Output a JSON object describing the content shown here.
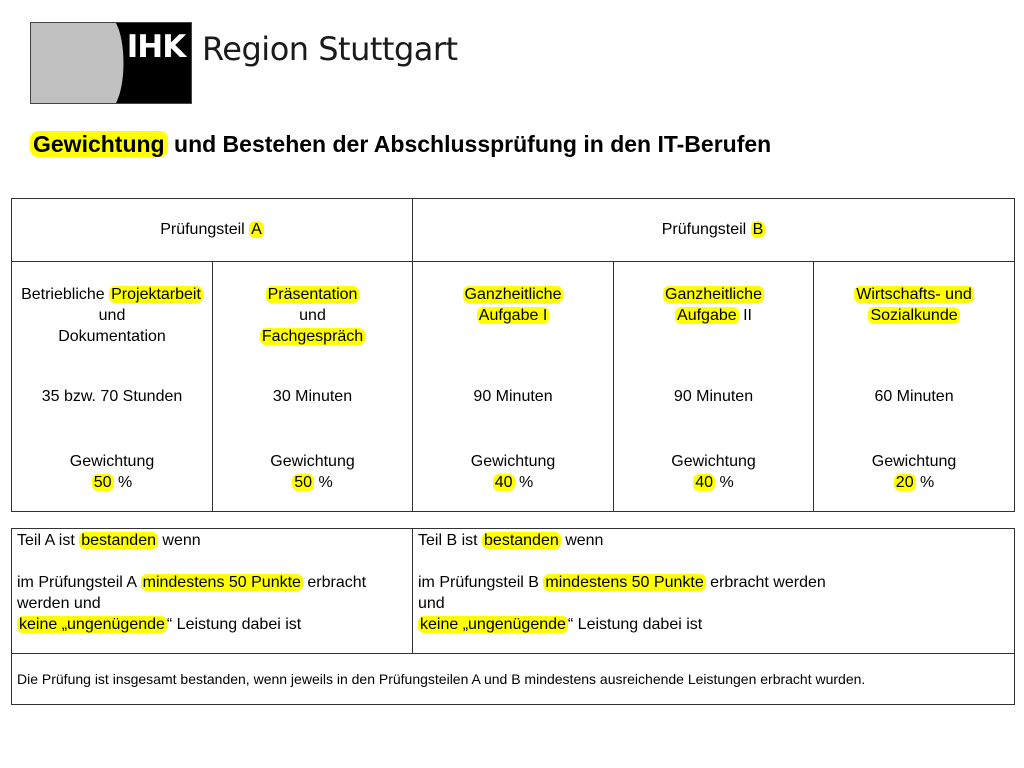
{
  "logo": {
    "abbr": "IHK",
    "region": "Region Stuttgart"
  },
  "title": {
    "highlighted": "Gewichtung",
    "rest": " und Bestehen der Abschlussprüfung in den IT-Berufen"
  },
  "parts": [
    {
      "prefix": "Prüfungsteil ",
      "letter": "A"
    },
    {
      "prefix": "Prüfungsteil ",
      "letter": "B"
    }
  ],
  "exams": [
    {
      "duration": "35 bzw. 70 Stunden",
      "weight_label": "Gewichtung",
      "weight": "50",
      "weight_unit": " %"
    },
    {
      "duration": "30 Minuten",
      "weight_label": "Gewichtung",
      "weight": "50",
      "weight_unit": " %"
    },
    {
      "duration": "90 Minuten",
      "weight_label": "Gewichtung",
      "weight": "40",
      "weight_unit": " %"
    },
    {
      "duration": "90 Minuten",
      "weight_label": "Gewichtung",
      "weight": "40",
      "weight_unit": " %"
    },
    {
      "duration": "60 Minuten",
      "weight_label": "Gewichtung",
      "weight": "20",
      "weight_unit": " %"
    }
  ],
  "exam_names": {
    "e1": {
      "l1a": "Betriebliche ",
      "l1b": "Projektarbeit",
      "l2": "und",
      "l3": "Dokumentation"
    },
    "e2": {
      "l1": "Präsentation",
      "l2": "und",
      "l3": "Fachgespräch"
    },
    "e3": {
      "l1": "Ganzheitliche",
      "l2": "Aufgabe I"
    },
    "e4": {
      "l1": "Ganzheitliche",
      "l2a": "Aufgabe",
      "l2b": " II"
    },
    "e5": {
      "l1": "Wirtschafts- und",
      "l2": "Sozialkunde"
    }
  },
  "rules": {
    "a": {
      "s1": "Teil A ist ",
      "s1h": "bestanden",
      "s1e": " wenn",
      "s2": "im Prüfungsteil A ",
      "s2h": "mindestens 50 Punkte",
      "s2e": " erbracht",
      "s3": "werden und",
      "s4h": "keine „ungenügende",
      "s4e": "“ Leistung dabei ist"
    },
    "b": {
      "s1": "Teil B ist ",
      "s1h": "bestanden",
      "s1e": " wenn",
      "s2": "im Prüfungsteil B ",
      "s2h": "mindestens 50 Punkte",
      "s2e": " erbracht werden",
      "s3": "und",
      "s4h": "keine „ungenügende",
      "s4e": "“ Leistung dabei ist"
    },
    "final": "Die Prüfung ist insgesamt bestanden, wenn jeweils in den Prüfungsteilen A und B mindestens ausreichende Leistungen erbracht wurden."
  },
  "colors": {
    "highlight": "#ffff00",
    "logo_black": "#000000",
    "logo_gray": "#c0c0c0"
  }
}
